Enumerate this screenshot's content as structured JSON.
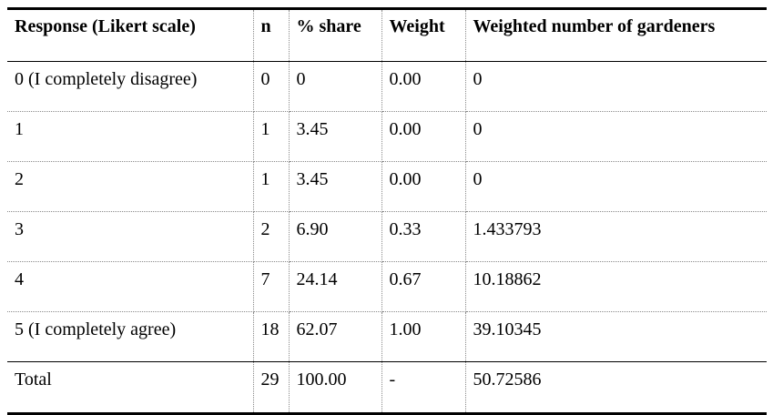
{
  "table": {
    "columns": [
      "Response (Likert scale)",
      "n",
      "% share",
      "Weight",
      "Weighted number of gardeners"
    ],
    "rows": [
      [
        "0 (I completely disagree)",
        "0",
        "0",
        "0.00",
        "0"
      ],
      [
        "1",
        "1",
        "3.45",
        "0.00",
        "0"
      ],
      [
        "2",
        "1",
        "3.45",
        "0.00",
        "0"
      ],
      [
        "3",
        "2",
        "6.90",
        "0.33",
        "1.433793"
      ],
      [
        "4",
        "7",
        "24.14",
        "0.67",
        "10.18862"
      ],
      [
        "5 (I completely agree)",
        "18",
        "62.07",
        "1.00",
        "39.10345"
      ]
    ],
    "total": [
      "Total",
      "29",
      "100.00",
      "-",
      "50.72586"
    ]
  }
}
